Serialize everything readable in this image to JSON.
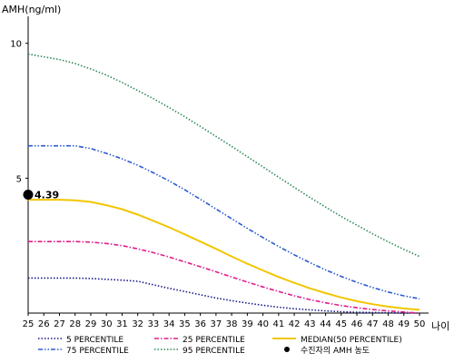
{
  "chart_data": {
    "type": "line",
    "ylabel": "AMH(ng/ml)",
    "xlabel": "나이",
    "x": [
      25,
      26,
      27,
      28,
      29,
      30,
      31,
      32,
      33,
      34,
      35,
      36,
      37,
      38,
      39,
      40,
      41,
      42,
      43,
      44,
      45,
      46,
      47,
      48,
      49,
      50
    ],
    "x_tick_labels": [
      "25",
      "26",
      "27",
      "28",
      "29",
      "30",
      "31",
      "32",
      "33",
      "34",
      "35",
      "36",
      "37",
      "38",
      "39",
      "40",
      "41",
      "42",
      "43",
      "44",
      "45",
      "46",
      "47",
      "48",
      "49",
      "50"
    ],
    "y_ticks": [
      5,
      10
    ],
    "y_tick_labels": [
      "5",
      "10"
    ],
    "xlim": [
      25,
      50
    ],
    "ylim": [
      0,
      11
    ],
    "grid": false,
    "legend_position": "bottom",
    "series": [
      {
        "name": "5 PERCENTILE",
        "color": "#1a1a8a",
        "dash": "dotted",
        "values": [
          1.3,
          1.3,
          1.3,
          1.3,
          1.28,
          1.25,
          1.22,
          1.18,
          1.05,
          0.92,
          0.8,
          0.68,
          0.56,
          0.46,
          0.37,
          0.29,
          0.22,
          0.16,
          0.12,
          0.08,
          0.05,
          0.03,
          0.02,
          0.01,
          0.0,
          0.0
        ]
      },
      {
        "name": "25 PERCENTILE",
        "color": "#e01e8c",
        "dash": "dashdot",
        "values": [
          2.65,
          2.65,
          2.65,
          2.65,
          2.63,
          2.58,
          2.5,
          2.38,
          2.24,
          2.08,
          1.9,
          1.72,
          1.53,
          1.34,
          1.15,
          0.97,
          0.8,
          0.64,
          0.5,
          0.38,
          0.28,
          0.2,
          0.13,
          0.08,
          0.04,
          0.0
        ]
      },
      {
        "name": "MEDIAN(50 PERCENTILE)",
        "color": "#f2c600",
        "dash": "solid",
        "values": [
          4.2,
          4.2,
          4.2,
          4.18,
          4.12,
          4.0,
          3.85,
          3.65,
          3.42,
          3.18,
          2.92,
          2.65,
          2.38,
          2.1,
          1.83,
          1.58,
          1.34,
          1.12,
          0.92,
          0.74,
          0.58,
          0.44,
          0.33,
          0.24,
          0.17,
          0.12
        ]
      },
      {
        "name": "75 PERCENTILE",
        "color": "#2c5bd0",
        "dash": "dashdotdot",
        "values": [
          6.2,
          6.2,
          6.2,
          6.2,
          6.1,
          5.92,
          5.72,
          5.48,
          5.2,
          4.9,
          4.57,
          4.22,
          3.86,
          3.5,
          3.14,
          2.8,
          2.47,
          2.16,
          1.87,
          1.6,
          1.36,
          1.14,
          0.95,
          0.78,
          0.64,
          0.53
        ]
      },
      {
        "name": "95 PERCENTILE",
        "color": "#2e8b57",
        "dash": "dotted",
        "values": [
          9.6,
          9.5,
          9.4,
          9.25,
          9.05,
          8.82,
          8.55,
          8.25,
          7.95,
          7.62,
          7.28,
          6.92,
          6.55,
          6.18,
          5.8,
          5.42,
          5.04,
          4.66,
          4.29,
          3.93,
          3.58,
          3.26,
          2.94,
          2.64,
          2.36,
          2.1
        ]
      }
    ],
    "marker": {
      "name": "수진자의 AMH 농도",
      "x": 25,
      "y": 4.39,
      "label": "4.39",
      "color": "#000000"
    }
  }
}
